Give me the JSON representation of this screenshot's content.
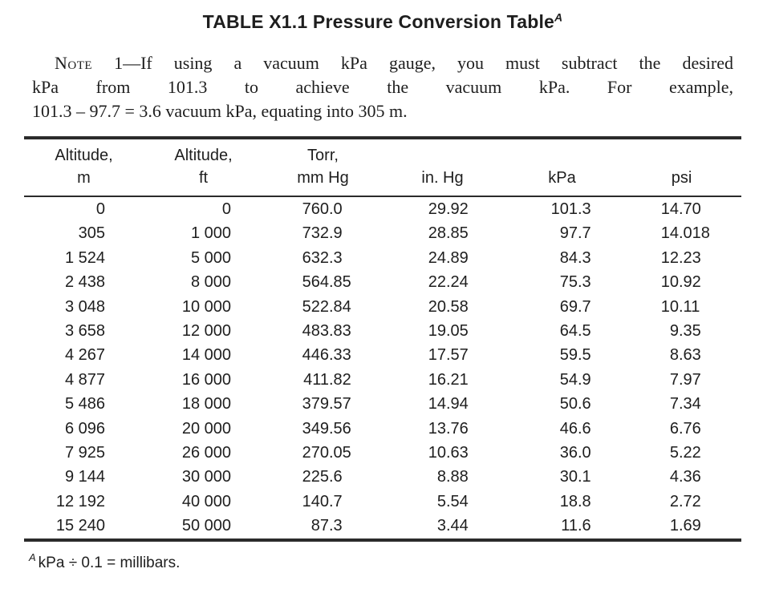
{
  "title": {
    "text": "TABLE X1.1 Pressure Conversion Table",
    "superscript": "A"
  },
  "note": {
    "label": "Note",
    "line1_rest": "1—If using a vacuum kPa gauge, you must subtract the desired",
    "line2": "kPa from 101.3 to achieve the vacuum kPa. For example,",
    "line3": "101.3 – 97.7 = 3.6 vacuum kPa, equating into 305 m."
  },
  "table": {
    "columns": [
      {
        "line1": "Altitude,",
        "line2": "m"
      },
      {
        "line1": "Altitude,",
        "line2": "ft"
      },
      {
        "line1": "Torr,",
        "line2": "mm Hg"
      },
      {
        "line1": "",
        "line2": "in. Hg"
      },
      {
        "line1": "",
        "line2": "kPa"
      },
      {
        "line1": "",
        "line2": "psi"
      }
    ],
    "rows": [
      [
        "0",
        "0",
        "760.0",
        "29.92",
        "101.3",
        "14.70"
      ],
      [
        "305",
        "1 000",
        "732.9",
        "28.85",
        "97.7",
        "14.018"
      ],
      [
        "1 524",
        "5 000",
        "632.3",
        "24.89",
        "84.3",
        "12.23"
      ],
      [
        "2 438",
        "8 000",
        "564.85",
        "22.24",
        "75.3",
        "10.92"
      ],
      [
        "3 048",
        "10 000",
        "522.84",
        "20.58",
        "69.7",
        "10.11"
      ],
      [
        "3 658",
        "12 000",
        "483.83",
        "19.05",
        "64.5",
        "9.35"
      ],
      [
        "4 267",
        "14 000",
        "446.33",
        "17.57",
        "59.5",
        "8.63"
      ],
      [
        "4 877",
        "16 000",
        "411.82",
        "16.21",
        "54.9",
        "7.97"
      ],
      [
        "5 486",
        "18 000",
        "379.57",
        "14.94",
        "50.6",
        "7.34"
      ],
      [
        "6 096",
        "20 000",
        "349.56",
        "13.76",
        "46.6",
        "6.76"
      ],
      [
        "7 925",
        "26 000",
        "270.05",
        "10.63",
        "36.0",
        "5.22"
      ],
      [
        "9 144",
        "30 000",
        "225.6",
        "8.88",
        "30.1",
        "4.36"
      ],
      [
        "12 192",
        "40 000",
        "140.7",
        "5.54",
        "18.8",
        "2.72"
      ],
      [
        "15 240",
        "50 000",
        "87.3",
        "3.44",
        "11.6",
        "1.69"
      ]
    ]
  },
  "footnote": {
    "superscript": "A",
    "text": "kPa ÷ 0.1 = millibars."
  }
}
